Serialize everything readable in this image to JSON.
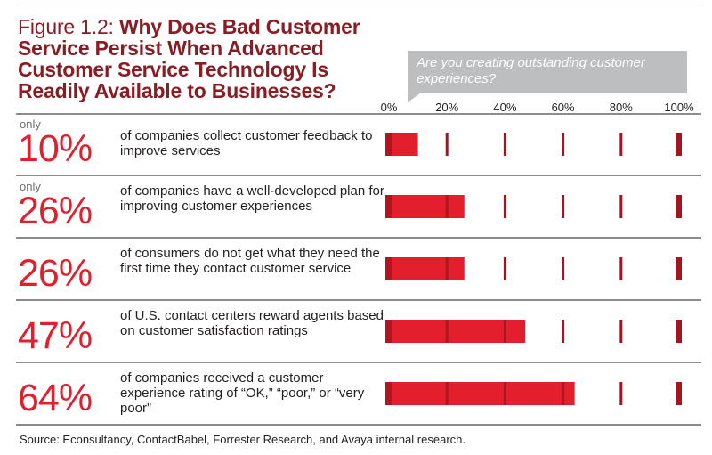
{
  "header": {
    "figure_label": "Figure 1.2:",
    "title": "Why Does Bad Customer Service Persist When Advanced Customer Service Technology Is Readily Available to Businesses?"
  },
  "callout": {
    "text": "Are you creating outstanding customer experiences?",
    "color": "#bcbec0"
  },
  "chart_data": {
    "type": "bar",
    "orientation": "horizontal",
    "xlim": [
      0,
      100
    ],
    "ticks": [
      "0%",
      "20%",
      "40%",
      "60%",
      "80%",
      "100%"
    ],
    "tick_values": [
      0,
      20,
      40,
      60,
      80,
      100
    ],
    "bar_color": "#e41f2d",
    "marker_color": "#a4161f",
    "rows": [
      {
        "prefix": "only",
        "value": 10,
        "label": "10%",
        "description": "of companies collect customer feedback to improve services"
      },
      {
        "prefix": "only",
        "value": 26,
        "label": "26%",
        "description": "of companies have a well-developed plan for improving customer experiences"
      },
      {
        "prefix": "",
        "value": 26,
        "label": "26%",
        "description": "of consumers do not get what they need the first time they contact customer service"
      },
      {
        "prefix": "",
        "value": 47,
        "label": "47%",
        "description": "of U.S. contact centers reward agents based on customer satisfaction ratings"
      },
      {
        "prefix": "",
        "value": 64,
        "label": "64%",
        "description": "of companies received a customer experience rating of “OK,” “poor,” or “very poor”"
      }
    ]
  },
  "footer": {
    "source": "Source: Econsultancy, ContactBabel, Forrester Research, and Avaya internal research."
  }
}
